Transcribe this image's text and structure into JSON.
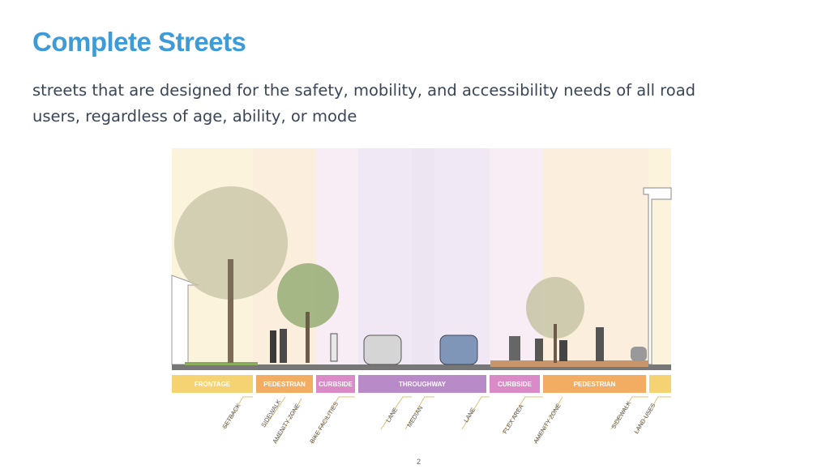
{
  "header": {
    "title": "Complete Streets"
  },
  "body": {
    "text": "streets that are designed for the safety, mobility, and accessibility needs of all road users, regardless of age, ability, or mode"
  },
  "diagram": {
    "zones": [
      "FRONTAGE",
      "PEDESTRIAN",
      "CURBSIDE",
      "THROUGHWAY",
      "CURBSIDE",
      "PEDESTRIAN"
    ],
    "sub_labels": [
      "SETBACK",
      "SIDEWALK",
      "AMENITY ZONE",
      "BIKE FACILITIES",
      "LANE",
      "MEDIAN",
      "LANE",
      "FLEX AREA",
      "AMENITY ZONE",
      "SIDEWALK",
      "LAND USES"
    ]
  },
  "footer": {
    "page_number": "2"
  }
}
